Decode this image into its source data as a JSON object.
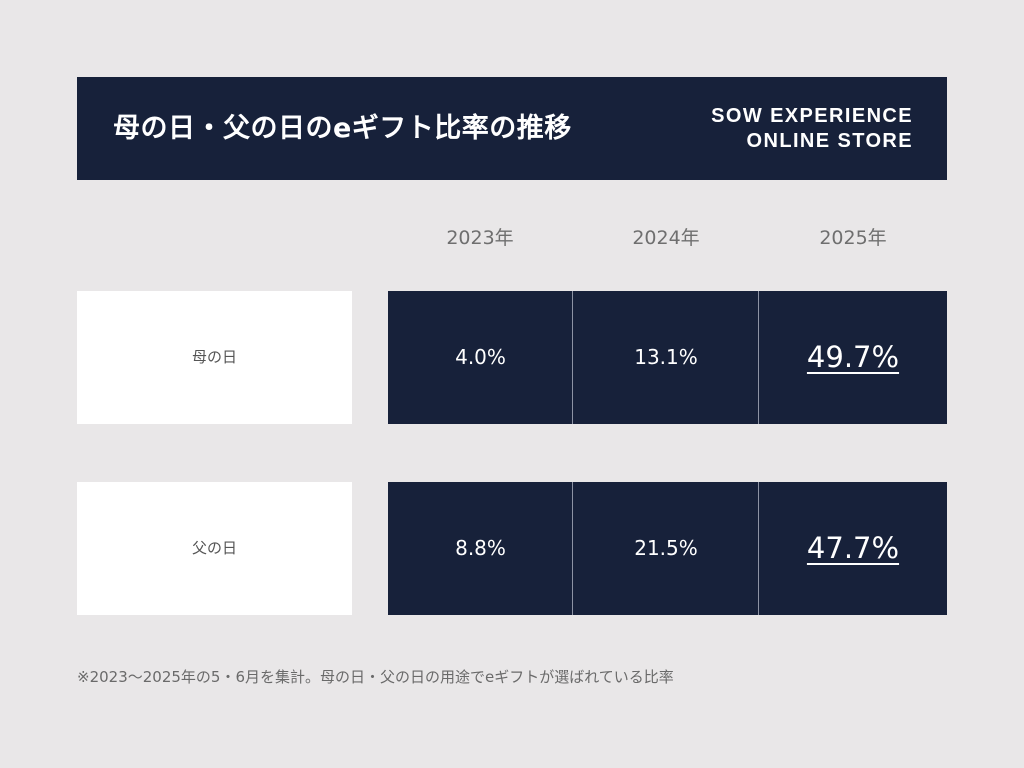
{
  "header": {
    "title": "母の日・父の日のeギフト比率の推移",
    "brand_line1": "SOW EXPERIENCE",
    "brand_line2": "ONLINE STORE"
  },
  "colors": {
    "navy": "#17213a",
    "background": "#e9e7e8",
    "label_bg": "#ffffff"
  },
  "chart_data": {
    "type": "table",
    "title": "母の日・父の日のeギフト比率の推移",
    "columns": [
      "2023年",
      "2024年",
      "2025年"
    ],
    "rows": [
      {
        "label": "母の日",
        "values": [
          "4.0%",
          "13.1%",
          "49.7%"
        ],
        "numeric": [
          4.0,
          13.1,
          49.7
        ]
      },
      {
        "label": "父の日",
        "values": [
          "8.8%",
          "21.5%",
          "47.7%"
        ],
        "numeric": [
          8.8,
          21.5,
          47.7
        ]
      }
    ],
    "highlight_column": "2025年"
  },
  "footnote": "※2023〜2025年の5・6月を集計。母の日・父の日の用途でeギフトが選ばれている比率"
}
